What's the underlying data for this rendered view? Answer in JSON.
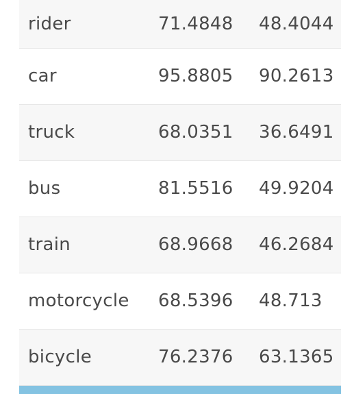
{
  "table": {
    "rows": [
      {
        "name": "rider",
        "v1": "71.4848",
        "v2": "48.4044"
      },
      {
        "name": "car",
        "v1": "95.8805",
        "v2": "90.2613"
      },
      {
        "name": "truck",
        "v1": "68.0351",
        "v2": "36.6491"
      },
      {
        "name": "bus",
        "v1": "81.5516",
        "v2": "49.9204"
      },
      {
        "name": "train",
        "v1": "68.9668",
        "v2": "46.2684"
      },
      {
        "name": "motorcycle",
        "v1": "68.5396",
        "v2": "48.713"
      },
      {
        "name": "bicycle",
        "v1": "76.2376",
        "v2": "63.1365"
      }
    ]
  },
  "colors": {
    "odd_row_background": "#f7f7f7",
    "even_row_background": "#ffffff",
    "footer_bar": "#84c3e2",
    "text": "#4a4a4a"
  }
}
